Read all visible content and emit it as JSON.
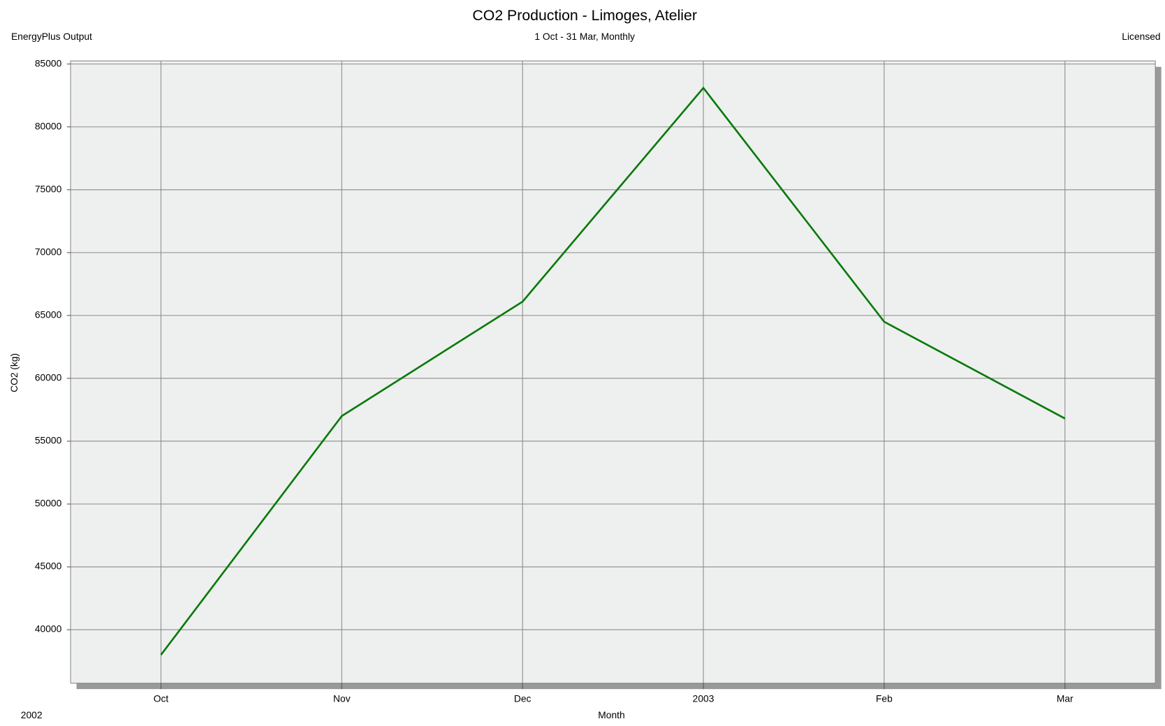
{
  "chart_data": {
    "type": "line",
    "title": "CO2 Production - Limoges, Atelier",
    "subtitle": "1 Oct - 31 Mar, Monthly",
    "source": "EnergyPlus Output",
    "license": "Licensed",
    "year_label": "2002",
    "x_label": "Month",
    "y_label": "CO2 (kg)",
    "categories": [
      "Oct",
      "Nov",
      "Dec",
      "2003",
      "Feb",
      "Mar"
    ],
    "series": [
      {
        "name": "CO2 (kg)",
        "color": "#0a7a0a",
        "values": [
          38000,
          57000,
          66100,
          83100,
          64500,
          56800
        ]
      }
    ],
    "ylim": [
      35750,
      85250
    ],
    "yticks": [
      40000,
      45000,
      50000,
      55000,
      60000,
      65000,
      70000,
      75000,
      80000,
      85000
    ],
    "grid": true
  }
}
